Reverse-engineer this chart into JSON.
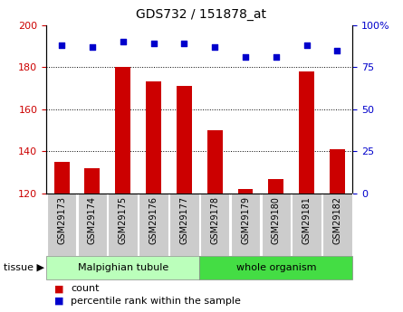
{
  "title": "GDS732 / 151878_at",
  "samples": [
    "GSM29173",
    "GSM29174",
    "GSM29175",
    "GSM29176",
    "GSM29177",
    "GSM29178",
    "GSM29179",
    "GSM29180",
    "GSM29181",
    "GSM29182"
  ],
  "counts": [
    135,
    132,
    180,
    173,
    171,
    150,
    122,
    127,
    178,
    141
  ],
  "percentiles": [
    88,
    87,
    90,
    89,
    89,
    87,
    81,
    81,
    88,
    85
  ],
  "ylim_left": [
    120,
    200
  ],
  "ylim_right": [
    0,
    100
  ],
  "yticks_left": [
    120,
    140,
    160,
    180,
    200
  ],
  "yticks_right": [
    0,
    25,
    50,
    75,
    100
  ],
  "bar_color": "#cc0000",
  "dot_color": "#0000cc",
  "grid_color": "#000000",
  "tissue_groups": [
    {
      "label": "Malpighian tubule",
      "start": 0,
      "end": 5,
      "color": "#bbffbb"
    },
    {
      "label": "whole organism",
      "start": 5,
      "end": 10,
      "color": "#44dd44"
    }
  ],
  "tissue_label": "tissue",
  "legend_count_label": "count",
  "legend_pct_label": "percentile rank within the sample",
  "bar_width": 0.5,
  "bg_color": "#ffffff",
  "cell_bg_color": "#cccccc",
  "tick_label_color_left": "#cc0000",
  "tick_label_color_right": "#0000cc"
}
